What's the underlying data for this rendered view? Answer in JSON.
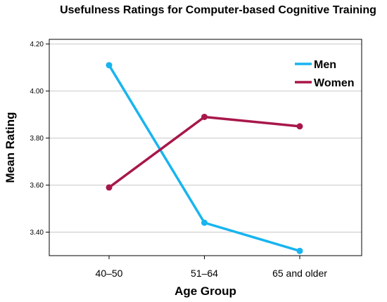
{
  "chart_data": {
    "type": "line",
    "title": "Usefulness Ratings for Computer-based Cognitive Training",
    "xlabel": "Age Group",
    "ylabel": "Mean Rating",
    "categories": [
      "40–50",
      "51–64",
      "65 and older"
    ],
    "yticks": [
      "3.40",
      "3.60",
      "3.80",
      "4.00",
      "4.20"
    ],
    "ylim": [
      3.3,
      4.22
    ],
    "grid": "horizontal",
    "legend_position": "top-right",
    "series": [
      {
        "name": "Men",
        "color": "#18b4ef",
        "values": [
          4.11,
          3.44,
          3.32
        ]
      },
      {
        "name": "Women",
        "color": "#a8174a",
        "values": [
          3.59,
          3.89,
          3.85
        ]
      }
    ]
  }
}
